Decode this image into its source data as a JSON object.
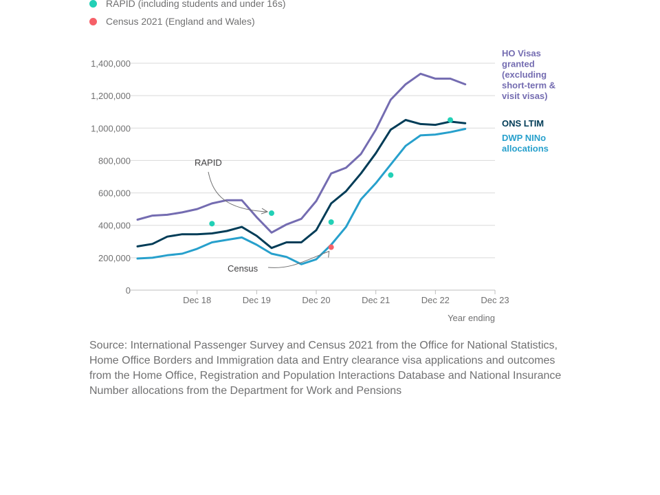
{
  "legend": [
    {
      "label": "RAPID (including students and under 16s)",
      "color": "#22d0b6"
    },
    {
      "label": "Census 2021 (England and Wales)",
      "color": "#f66068"
    }
  ],
  "source": "Source: International Passenger Survey and Census 2021 from the Office for National Statistics, Home Office Borders and Immigration data and Entry clearance visa applications and outcomes from the Home Office, Registration and Population Interactions Database and National Insurance Number allocations from the Department for Work and Pensions",
  "chart_data": {
    "type": "line",
    "xlabel": "Year ending",
    "ylabel": "",
    "ylim": [
      0,
      1400000
    ],
    "yticks": [
      0,
      200000,
      400000,
      600000,
      800000,
      1000000,
      1200000,
      1400000
    ],
    "ytick_labels": [
      "0",
      "200,000",
      "400,000",
      "600,000",
      "800,000",
      "1,000,000",
      "1,200,000",
      "1,400,000"
    ],
    "xtick_labels": [
      "Dec 18",
      "Dec 19",
      "Dec 20",
      "Dec 21",
      "Dec 22",
      "Dec 23"
    ],
    "xtick_positions": [
      4,
      8,
      12,
      16,
      20,
      24
    ],
    "x": [
      0,
      1,
      2,
      3,
      4,
      5,
      6,
      7,
      8,
      9,
      10,
      11,
      12,
      13,
      14,
      15,
      16,
      17,
      18,
      19,
      20,
      21,
      22,
      23,
      24
    ],
    "series": [
      {
        "name": "HO Visas granted (excluding short-term & visit visas)",
        "color": "#746cb1",
        "values": [
          435000,
          460000,
          465000,
          480000,
          500000,
          535000,
          555000,
          555000,
          450000,
          355000,
          405000,
          440000,
          550000,
          720000,
          755000,
          840000,
          990000,
          1175000,
          1270000,
          1335000,
          1305000,
          1305000,
          1270000,
          null,
          null
        ]
      },
      {
        "name": "ONS LTIM",
        "color": "#003c57",
        "values": [
          270000,
          285000,
          330000,
          345000,
          345000,
          350000,
          365000,
          390000,
          335000,
          260000,
          295000,
          295000,
          370000,
          535000,
          610000,
          720000,
          845000,
          990000,
          1050000,
          1025000,
          1020000,
          1040000,
          1030000,
          null,
          null
        ]
      },
      {
        "name": "DWP NINo allocations",
        "color": "#27a0cc",
        "values": [
          195000,
          200000,
          215000,
          225000,
          255000,
          295000,
          310000,
          325000,
          280000,
          225000,
          205000,
          160000,
          190000,
          280000,
          390000,
          560000,
          660000,
          775000,
          890000,
          955000,
          960000,
          975000,
          995000,
          null,
          null
        ]
      }
    ],
    "points": [
      {
        "name": "RAPID (including students and under 16s)",
        "color": "#22d0b6",
        "x": [
          5,
          9,
          13,
          17,
          21
        ],
        "values": [
          410000,
          475000,
          420000,
          710000,
          1050000
        ]
      },
      {
        "name": "Census 2021 (England and Wales)",
        "color": "#f66068",
        "x": [
          13
        ],
        "values": [
          265000
        ]
      }
    ],
    "annotations": [
      {
        "text": "RAPID",
        "target_x": 9,
        "target_y": 475000
      },
      {
        "text": "Census",
        "target_x": 13,
        "target_y": 265000
      }
    ],
    "grid": true,
    "legend": "top-left"
  }
}
